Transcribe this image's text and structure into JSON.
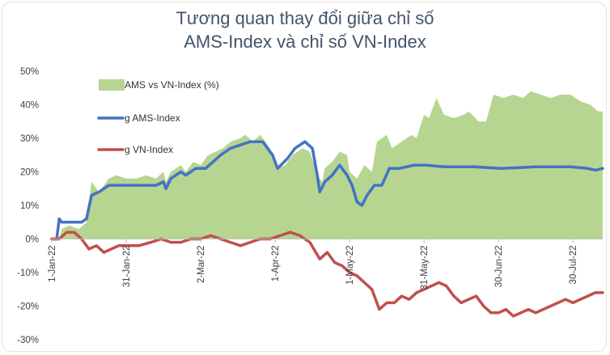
{
  "title_line1": "Tương quan thay đổi giữa chỉ số",
  "title_line2": "AMS-Index và chỉ số VN-Index",
  "chart_data": {
    "type": "line",
    "ylim": [
      -30,
      50
    ],
    "y_ticks": [
      50,
      40,
      30,
      20,
      10,
      0,
      -10,
      -20,
      -30
    ],
    "y_tick_labels": [
      "50%",
      "40%",
      "30%",
      "20%",
      "10%",
      "0%",
      "-10%",
      "-20%",
      "-30%"
    ],
    "x_range": [
      "2022-01-01",
      "2022-08-11"
    ],
    "x_ticks": [
      "2022-01-01",
      "2022-01-31",
      "2022-03-02",
      "2022-04-01",
      "2022-05-01",
      "2022-05-31",
      "2022-06-30",
      "2022-07-30"
    ],
    "x_tick_labels": [
      "1-Jan-22",
      "31-Jan-22",
      "2-Mar-22",
      "1-Apr-22",
      "1-May-22",
      "31-May-22",
      "30-Jun-22",
      "30-Jul-22"
    ],
    "grid": false,
    "legend_position": "top-left",
    "series": [
      {
        "name": "AMS vs VN-Index (%)",
        "kind": "area",
        "color": "#b6d590",
        "points": [
          [
            "2022-01-01",
            0
          ],
          [
            "2022-01-04",
            0
          ],
          [
            "2022-01-05",
            3
          ],
          [
            "2022-01-08",
            4
          ],
          [
            "2022-01-12",
            3
          ],
          [
            "2022-01-15",
            5
          ],
          [
            "2022-01-17",
            17
          ],
          [
            "2022-01-20",
            14
          ],
          [
            "2022-01-24",
            18
          ],
          [
            "2022-01-27",
            19
          ],
          [
            "2022-01-31",
            18
          ],
          [
            "2022-02-04",
            18
          ],
          [
            "2022-02-08",
            19
          ],
          [
            "2022-02-12",
            18
          ],
          [
            "2022-02-15",
            20
          ],
          [
            "2022-02-16",
            17
          ],
          [
            "2022-02-18",
            20
          ],
          [
            "2022-02-22",
            22
          ],
          [
            "2022-02-24",
            20
          ],
          [
            "2022-02-27",
            23
          ],
          [
            "2022-03-02",
            22
          ],
          [
            "2022-03-05",
            25
          ],
          [
            "2022-03-08",
            26
          ],
          [
            "2022-03-11",
            27
          ],
          [
            "2022-03-14",
            29
          ],
          [
            "2022-03-18",
            30
          ],
          [
            "2022-03-20",
            31
          ],
          [
            "2022-03-23",
            29
          ],
          [
            "2022-03-26",
            31
          ],
          [
            "2022-03-29",
            28
          ],
          [
            "2022-03-31",
            25
          ],
          [
            "2022-04-02",
            21
          ],
          [
            "2022-04-05",
            22
          ],
          [
            "2022-04-08",
            25
          ],
          [
            "2022-04-12",
            27
          ],
          [
            "2022-04-15",
            26
          ],
          [
            "2022-04-18",
            19
          ],
          [
            "2022-04-20",
            17
          ],
          [
            "2022-04-21",
            21
          ],
          [
            "2022-04-24",
            23
          ],
          [
            "2022-04-27",
            26
          ],
          [
            "2022-04-30",
            25
          ],
          [
            "2022-05-01",
            20
          ],
          [
            "2022-05-04",
            18
          ],
          [
            "2022-05-07",
            22
          ],
          [
            "2022-05-10",
            20
          ],
          [
            "2022-05-12",
            29
          ],
          [
            "2022-05-16",
            31
          ],
          [
            "2022-05-18",
            27
          ],
          [
            "2022-05-22",
            29
          ],
          [
            "2022-05-26",
            31
          ],
          [
            "2022-05-28",
            30
          ],
          [
            "2022-05-31",
            37
          ],
          [
            "2022-06-02",
            36
          ],
          [
            "2022-06-05",
            42
          ],
          [
            "2022-06-08",
            37
          ],
          [
            "2022-06-12",
            36
          ],
          [
            "2022-06-16",
            37
          ],
          [
            "2022-06-18",
            38
          ],
          [
            "2022-06-22",
            35
          ],
          [
            "2022-06-25",
            35
          ],
          [
            "2022-06-28",
            43
          ],
          [
            "2022-07-02",
            42
          ],
          [
            "2022-07-06",
            43
          ],
          [
            "2022-07-10",
            42
          ],
          [
            "2022-07-13",
            44
          ],
          [
            "2022-07-17",
            43
          ],
          [
            "2022-07-21",
            42
          ],
          [
            "2022-07-25",
            43
          ],
          [
            "2022-07-29",
            43
          ],
          [
            "2022-08-02",
            41
          ],
          [
            "2022-08-06",
            40
          ],
          [
            "2022-08-09",
            38
          ],
          [
            "2022-08-11",
            38
          ]
        ]
      },
      {
        "name": "g AMS-Index",
        "kind": "line",
        "color": "#4472c4",
        "points": [
          [
            "2022-01-01",
            0
          ],
          [
            "2022-01-03",
            0
          ],
          [
            "2022-01-04",
            6
          ],
          [
            "2022-01-05",
            5
          ],
          [
            "2022-01-13",
            5
          ],
          [
            "2022-01-15",
            6
          ],
          [
            "2022-01-17",
            13
          ],
          [
            "2022-01-20",
            14
          ],
          [
            "2022-01-24",
            16
          ],
          [
            "2022-01-31",
            16
          ],
          [
            "2022-02-06",
            16
          ],
          [
            "2022-02-12",
            16
          ],
          [
            "2022-02-15",
            17
          ],
          [
            "2022-02-16",
            15
          ],
          [
            "2022-02-18",
            18
          ],
          [
            "2022-02-22",
            20
          ],
          [
            "2022-02-24",
            19
          ],
          [
            "2022-02-28",
            21
          ],
          [
            "2022-03-04",
            21
          ],
          [
            "2022-03-07",
            23
          ],
          [
            "2022-03-10",
            25
          ],
          [
            "2022-03-14",
            27
          ],
          [
            "2022-03-18",
            28
          ],
          [
            "2022-03-22",
            29
          ],
          [
            "2022-03-27",
            29
          ],
          [
            "2022-03-31",
            25
          ],
          [
            "2022-04-02",
            21
          ],
          [
            "2022-04-06",
            24
          ],
          [
            "2022-04-09",
            27
          ],
          [
            "2022-04-13",
            29
          ],
          [
            "2022-04-16",
            27
          ],
          [
            "2022-04-18",
            19
          ],
          [
            "2022-04-19",
            14
          ],
          [
            "2022-04-21",
            17
          ],
          [
            "2022-04-24",
            19
          ],
          [
            "2022-04-27",
            22
          ],
          [
            "2022-04-30",
            19
          ],
          [
            "2022-05-02",
            16
          ],
          [
            "2022-05-04",
            11
          ],
          [
            "2022-05-06",
            10
          ],
          [
            "2022-05-08",
            13
          ],
          [
            "2022-05-11",
            16
          ],
          [
            "2022-05-14",
            16
          ],
          [
            "2022-05-17",
            21
          ],
          [
            "2022-05-21",
            21
          ],
          [
            "2022-05-27",
            22
          ],
          [
            "2022-06-01",
            22
          ],
          [
            "2022-06-08",
            21.5
          ],
          [
            "2022-06-20",
            21.5
          ],
          [
            "2022-07-01",
            21
          ],
          [
            "2022-07-15",
            21.5
          ],
          [
            "2022-07-29",
            21.5
          ],
          [
            "2022-08-05",
            21
          ],
          [
            "2022-08-08",
            20.5
          ],
          [
            "2022-08-11",
            21
          ]
        ]
      },
      {
        "name": "g VN-Index",
        "kind": "line",
        "color": "#c0504d",
        "points": [
          [
            "2022-01-01",
            0
          ],
          [
            "2022-01-04",
            0
          ],
          [
            "2022-01-07",
            2
          ],
          [
            "2022-01-10",
            2
          ],
          [
            "2022-01-13",
            0
          ],
          [
            "2022-01-16",
            -3
          ],
          [
            "2022-01-19",
            -2
          ],
          [
            "2022-01-22",
            -4
          ],
          [
            "2022-01-25",
            -3
          ],
          [
            "2022-01-28",
            -2
          ],
          [
            "2022-02-01",
            -2
          ],
          [
            "2022-02-05",
            -2
          ],
          [
            "2022-02-10",
            -1
          ],
          [
            "2022-02-14",
            0
          ],
          [
            "2022-02-18",
            -1
          ],
          [
            "2022-02-22",
            -1
          ],
          [
            "2022-02-26",
            0
          ],
          [
            "2022-03-02",
            0
          ],
          [
            "2022-03-06",
            1
          ],
          [
            "2022-03-10",
            0
          ],
          [
            "2022-03-14",
            -1
          ],
          [
            "2022-03-18",
            -2
          ],
          [
            "2022-03-22",
            -1
          ],
          [
            "2022-03-26",
            0
          ],
          [
            "2022-03-30",
            0
          ],
          [
            "2022-04-03",
            1
          ],
          [
            "2022-04-07",
            2
          ],
          [
            "2022-04-11",
            1
          ],
          [
            "2022-04-15",
            -1
          ],
          [
            "2022-04-19",
            -6
          ],
          [
            "2022-04-22",
            -4
          ],
          [
            "2022-04-25",
            -7
          ],
          [
            "2022-04-28",
            -8
          ],
          [
            "2022-05-01",
            -10
          ],
          [
            "2022-05-04",
            -11
          ],
          [
            "2022-05-07",
            -13
          ],
          [
            "2022-05-10",
            -15
          ],
          [
            "2022-05-13",
            -21
          ],
          [
            "2022-05-16",
            -19
          ],
          [
            "2022-05-19",
            -19
          ],
          [
            "2022-05-22",
            -17
          ],
          [
            "2022-05-25",
            -18
          ],
          [
            "2022-05-28",
            -16
          ],
          [
            "2022-05-31",
            -15
          ],
          [
            "2022-06-03",
            -14
          ],
          [
            "2022-06-06",
            -13
          ],
          [
            "2022-06-09",
            -14
          ],
          [
            "2022-06-12",
            -17
          ],
          [
            "2022-06-15",
            -19
          ],
          [
            "2022-06-18",
            -18
          ],
          [
            "2022-06-21",
            -17
          ],
          [
            "2022-06-24",
            -20
          ],
          [
            "2022-06-27",
            -22
          ],
          [
            "2022-06-30",
            -22
          ],
          [
            "2022-07-03",
            -21
          ],
          [
            "2022-07-06",
            -23
          ],
          [
            "2022-07-09",
            -22
          ],
          [
            "2022-07-12",
            -21
          ],
          [
            "2022-07-15",
            -22
          ],
          [
            "2022-07-18",
            -21
          ],
          [
            "2022-07-21",
            -20
          ],
          [
            "2022-07-24",
            -19
          ],
          [
            "2022-07-27",
            -18
          ],
          [
            "2022-07-30",
            -19
          ],
          [
            "2022-08-02",
            -18
          ],
          [
            "2022-08-05",
            -17
          ],
          [
            "2022-08-08",
            -16
          ],
          [
            "2022-08-11",
            -16
          ]
        ]
      }
    ]
  }
}
